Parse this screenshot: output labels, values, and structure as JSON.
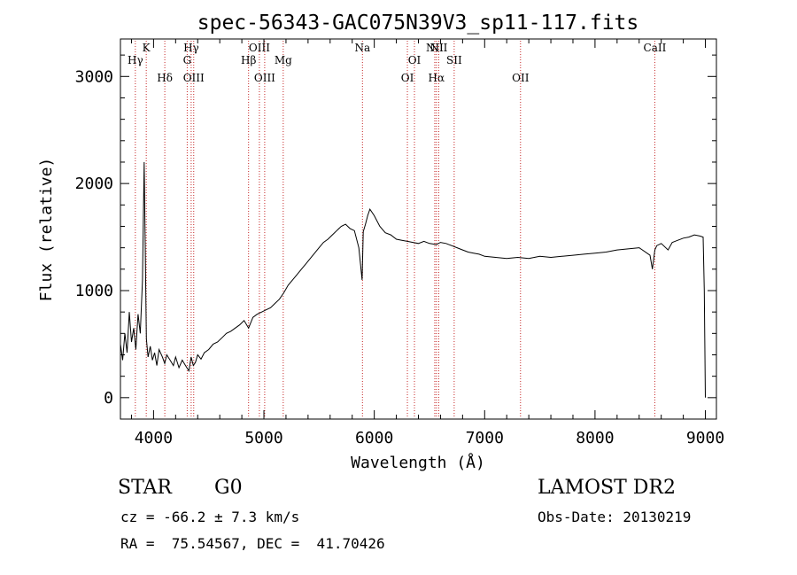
{
  "chart_data": {
    "type": "line",
    "title": "spec-56343-GAC075N39V3_sp11-117.fits",
    "xlabel": "Wavelength (Å)",
    "ylabel": "Flux (relative)",
    "xlim": [
      3700,
      9100
    ],
    "ylim": [
      -200,
      3350
    ],
    "xticks": [
      4000,
      5000,
      6000,
      7000,
      8000,
      9000
    ],
    "yticks": [
      0,
      1000,
      2000,
      3000
    ],
    "grid": false,
    "line_color": "#000000",
    "marker_color": "#c62828",
    "series": [
      {
        "x": [
          3700,
          3720,
          3740,
          3760,
          3780,
          3800,
          3820,
          3840,
          3860,
          3880,
          3900,
          3915,
          3935,
          3950,
          3970,
          3990,
          4010,
          4030,
          4050,
          4080,
          4101,
          4120,
          4150,
          4180,
          4200,
          4230,
          4260,
          4290,
          4320,
          4340,
          4360,
          4380,
          4400,
          4430,
          4460,
          4500,
          4540,
          4580,
          4620,
          4660,
          4700,
          4740,
          4780,
          4820,
          4861,
          4900,
          4940,
          4980,
          5020,
          5060,
          5100,
          5140,
          5180,
          5220,
          5260,
          5300,
          5340,
          5380,
          5420,
          5460,
          5500,
          5540,
          5580,
          5620,
          5660,
          5700,
          5740,
          5780,
          5820,
          5860,
          5890,
          5900,
          5920,
          5940,
          5960,
          6000,
          6050,
          6100,
          6150,
          6200,
          6250,
          6300,
          6350,
          6400,
          6450,
          6500,
          6563,
          6600,
          6650,
          6700,
          6750,
          6800,
          6850,
          6900,
          6950,
          7000,
          7100,
          7200,
          7300,
          7400,
          7500,
          7600,
          7700,
          7800,
          7900,
          8000,
          8100,
          8200,
          8300,
          8400,
          8498,
          8520,
          8542,
          8560,
          8600,
          8662,
          8700,
          8750,
          8800,
          8850,
          8900,
          8950,
          8980,
          8990,
          9000
        ],
        "y": [
          500,
          350,
          600,
          420,
          800,
          520,
          650,
          450,
          780,
          600,
          1100,
          2200,
          550,
          380,
          480,
          350,
          420,
          300,
          450,
          380,
          320,
          400,
          350,
          300,
          380,
          280,
          350,
          300,
          250,
          380,
          300,
          330,
          400,
          360,
          420,
          450,
          500,
          520,
          560,
          600,
          620,
          650,
          680,
          720,
          650,
          750,
          780,
          800,
          820,
          840,
          880,
          920,
          980,
          1050,
          1100,
          1150,
          1200,
          1250,
          1300,
          1350,
          1400,
          1450,
          1480,
          1520,
          1560,
          1600,
          1620,
          1580,
          1560,
          1400,
          1100,
          1550,
          1620,
          1700,
          1760,
          1700,
          1600,
          1540,
          1520,
          1480,
          1470,
          1460,
          1450,
          1440,
          1460,
          1440,
          1430,
          1450,
          1440,
          1420,
          1400,
          1380,
          1360,
          1350,
          1340,
          1320,
          1310,
          1300,
          1310,
          1300,
          1320,
          1310,
          1320,
          1330,
          1340,
          1350,
          1360,
          1380,
          1390,
          1400,
          1330,
          1200,
          1380,
          1420,
          1440,
          1380,
          1450,
          1470,
          1490,
          1500,
          1520,
          1510,
          1500,
          1000,
          0
        ]
      }
    ],
    "lines": [
      {
        "name": "Hγ",
        "x": 3835
      },
      {
        "name": "K",
        "x": 3934
      },
      {
        "name": "Hδ",
        "x": 4102
      },
      {
        "name": "Hγ",
        "x": 4341
      },
      {
        "name": "G",
        "x": 4305
      },
      {
        "name": "OIII",
        "x": 4364
      },
      {
        "name": "Hβ",
        "x": 4861
      },
      {
        "name": "OIII",
        "x": 4959
      },
      {
        "name": "OIII",
        "x": 5007
      },
      {
        "name": "Mg",
        "x": 5175
      },
      {
        "name": "Na",
        "x": 5893
      },
      {
        "name": "OI",
        "x": 6300
      },
      {
        "name": "OI",
        "x": 6364
      },
      {
        "name": "NII",
        "x": 6548
      },
      {
        "name": "Hα",
        "x": 6563
      },
      {
        "name": "NII",
        "x": 6584
      },
      {
        "name": "SII",
        "x": 6724
      },
      {
        "name": "OII",
        "x": 7325
      },
      {
        "name": "CaII",
        "x": 8542
      }
    ]
  },
  "info": {
    "object_class": "STAR",
    "subclass": "G0",
    "survey": "LAMOST DR2",
    "cz": "cz = -66.2 ± 7.3 km/s",
    "obs_date": "Obs-Date: 20130219",
    "radec": "RA =  75.54567, DEC =  41.70426"
  }
}
